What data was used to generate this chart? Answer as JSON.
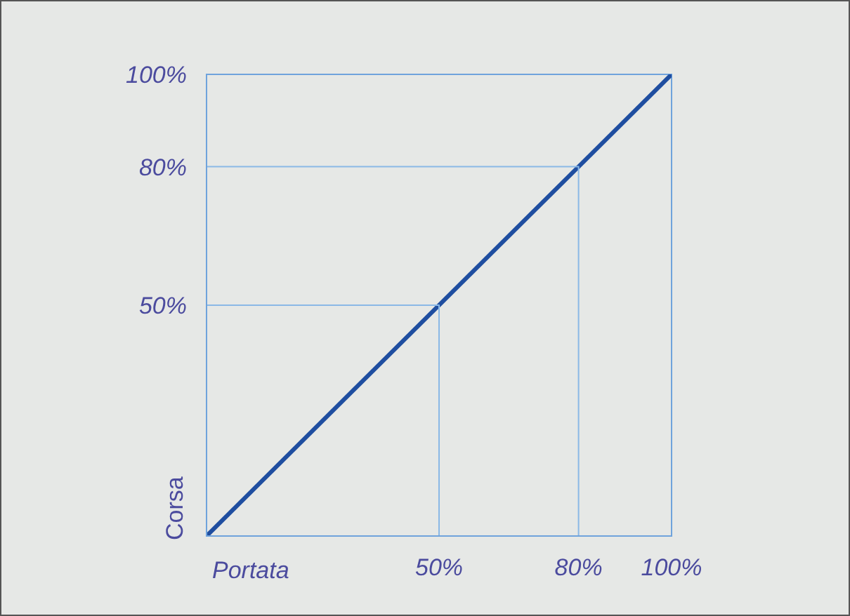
{
  "chart_data": {
    "type": "line",
    "xlabel": "Portata",
    "ylabel": "Corsa",
    "xlim": [
      0,
      100
    ],
    "ylim": [
      0,
      100
    ],
    "xticks": [
      {
        "value": 50,
        "label": "50%"
      },
      {
        "value": 80,
        "label": "80%"
      },
      {
        "value": 100,
        "label": "100%"
      }
    ],
    "yticks": [
      {
        "value": 50,
        "label": "50%"
      },
      {
        "value": 80,
        "label": "80%"
      },
      {
        "value": 100,
        "label": "100%"
      }
    ],
    "grid": false,
    "marker": "none",
    "series": [
      {
        "x": [
          0,
          100
        ],
        "values": [
          0,
          100
        ],
        "color": "#1f4ea0"
      },
      {
        "x": [
          0,
          50,
          50
        ],
        "values": [
          50,
          50,
          0
        ],
        "color": "#8ab8e6"
      },
      {
        "x": [
          0,
          80,
          80
        ],
        "values": [
          80,
          80,
          0
        ],
        "color": "#8ab8e6"
      }
    ]
  }
}
